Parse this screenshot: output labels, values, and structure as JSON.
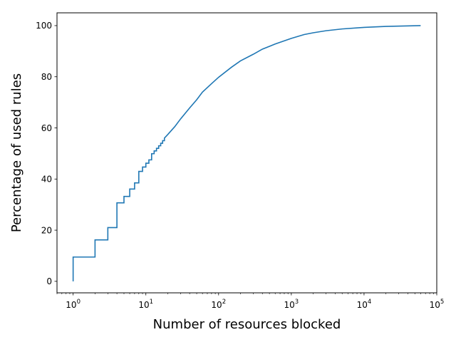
{
  "chart_data": {
    "type": "line",
    "title": "",
    "xlabel": "Number of resources blocked",
    "ylabel": "Percentage of used rules",
    "x_scale": "log",
    "xlim": [
      0.6,
      100000
    ],
    "ylim": [
      -4.5,
      105
    ],
    "grid": false,
    "line_color": "#1f77b4",
    "x_ticks": [
      {
        "value": 1,
        "base": "10",
        "exp": "0"
      },
      {
        "value": 10,
        "base": "10",
        "exp": "1"
      },
      {
        "value": 100,
        "base": "10",
        "exp": "2"
      },
      {
        "value": 1000,
        "base": "10",
        "exp": "3"
      },
      {
        "value": 10000,
        "base": "10",
        "exp": "4"
      },
      {
        "value": 100000,
        "base": "10",
        "exp": "5"
      }
    ],
    "y_ticks": [
      {
        "value": 0,
        "label": "0"
      },
      {
        "value": 20,
        "label": "20"
      },
      {
        "value": 40,
        "label": "40"
      },
      {
        "value": 60,
        "label": "60"
      },
      {
        "value": 80,
        "label": "80"
      },
      {
        "value": 100,
        "label": "100"
      }
    ],
    "series": [
      {
        "steps": [
          [
            1,
            0
          ],
          [
            1,
            9.5
          ],
          [
            2,
            9.5
          ],
          [
            2,
            16.2
          ],
          [
            3,
            16.2
          ],
          [
            3,
            21.0
          ],
          [
            4,
            21.0
          ],
          [
            4,
            30.7
          ],
          [
            5,
            30.7
          ],
          [
            5,
            33.2
          ],
          [
            6,
            33.2
          ],
          [
            6,
            36.1
          ],
          [
            7,
            36.1
          ],
          [
            7,
            38.5
          ],
          [
            8,
            38.5
          ],
          [
            8,
            43.0
          ],
          [
            9,
            43.0
          ],
          [
            9,
            44.7
          ],
          [
            10,
            44.7
          ],
          [
            10,
            46.2
          ],
          [
            11,
            46.2
          ],
          [
            11,
            47.5
          ],
          [
            12,
            47.5
          ],
          [
            12,
            49.9
          ],
          [
            13,
            49.9
          ],
          [
            13,
            51.0
          ],
          [
            14,
            51.0
          ],
          [
            14,
            52.0
          ],
          [
            15,
            52.0
          ],
          [
            15,
            53.0
          ],
          [
            16,
            53.0
          ],
          [
            16,
            54.0
          ],
          [
            17,
            54.0
          ],
          [
            17,
            55.0
          ],
          [
            18,
            55.0
          ],
          [
            18,
            56.0
          ]
        ],
        "smooth": [
          [
            20,
            57.4
          ],
          [
            25,
            60.5
          ],
          [
            30,
            63.5
          ],
          [
            40,
            67.8
          ],
          [
            50,
            71.0
          ],
          [
            60,
            74.0
          ],
          [
            80,
            77.3
          ],
          [
            100,
            79.8
          ],
          [
            150,
            83.7
          ],
          [
            200,
            86.2
          ],
          [
            300,
            88.8
          ],
          [
            400,
            90.8
          ],
          [
            600,
            92.8
          ],
          [
            1000,
            95.0
          ],
          [
            1500,
            96.5
          ],
          [
            2000,
            97.2
          ],
          [
            3000,
            98.0
          ],
          [
            5000,
            98.7
          ],
          [
            10000,
            99.3
          ],
          [
            20000,
            99.7
          ],
          [
            60000,
            100
          ]
        ]
      }
    ]
  }
}
